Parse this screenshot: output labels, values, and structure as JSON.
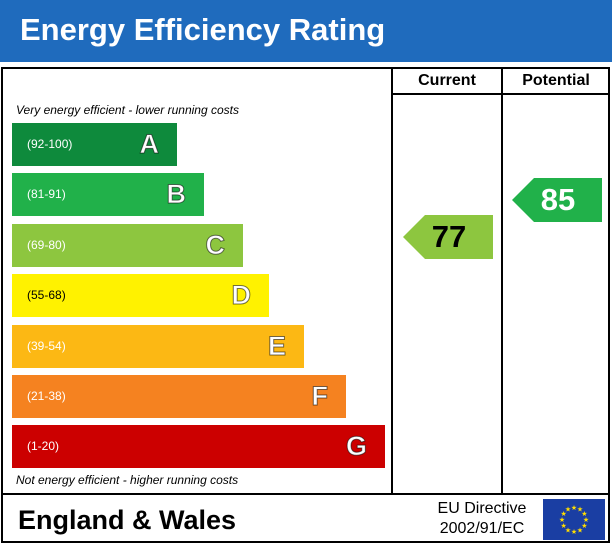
{
  "title": "Energy Efficiency Rating",
  "columns": {
    "current": "Current",
    "potential": "Potential"
  },
  "top_note": "Very energy efficient - lower running costs",
  "bottom_note": "Not energy efficient - higher running costs",
  "footer": {
    "region": "England & Wales",
    "directive_line1": "EU Directive",
    "directive_line2": "2002/91/EC"
  },
  "colors": {
    "header": "#1f6bbd",
    "flag": "#1a3ea3",
    "stars": "#ffdd00"
  },
  "chart_data": {
    "type": "bar",
    "title": "Energy Efficiency Rating",
    "bands": [
      {
        "letter": "A",
        "range": "(92-100)",
        "min": 92,
        "max": 100,
        "color": "#0e8a3c"
      },
      {
        "letter": "B",
        "range": "(81-91)",
        "min": 81,
        "max": 91,
        "color": "#21b14a"
      },
      {
        "letter": "C",
        "range": "(69-80)",
        "min": 69,
        "max": 80,
        "color": "#8dc63f"
      },
      {
        "letter": "D",
        "range": "(55-68)",
        "min": 55,
        "max": 68,
        "color": "#fff200"
      },
      {
        "letter": "E",
        "range": "(39-54)",
        "min": 39,
        "max": 54,
        "color": "#fcb814"
      },
      {
        "letter": "F",
        "range": "(21-38)",
        "min": 21,
        "max": 38,
        "color": "#f58220"
      },
      {
        "letter": "G",
        "range": "(1-20)",
        "min": 1,
        "max": 20,
        "color": "#cc0000"
      }
    ],
    "current": {
      "value": 77,
      "band": "C",
      "color": "#8dc63f"
    },
    "potential": {
      "value": 85,
      "band": "B",
      "color": "#21b14a"
    }
  }
}
